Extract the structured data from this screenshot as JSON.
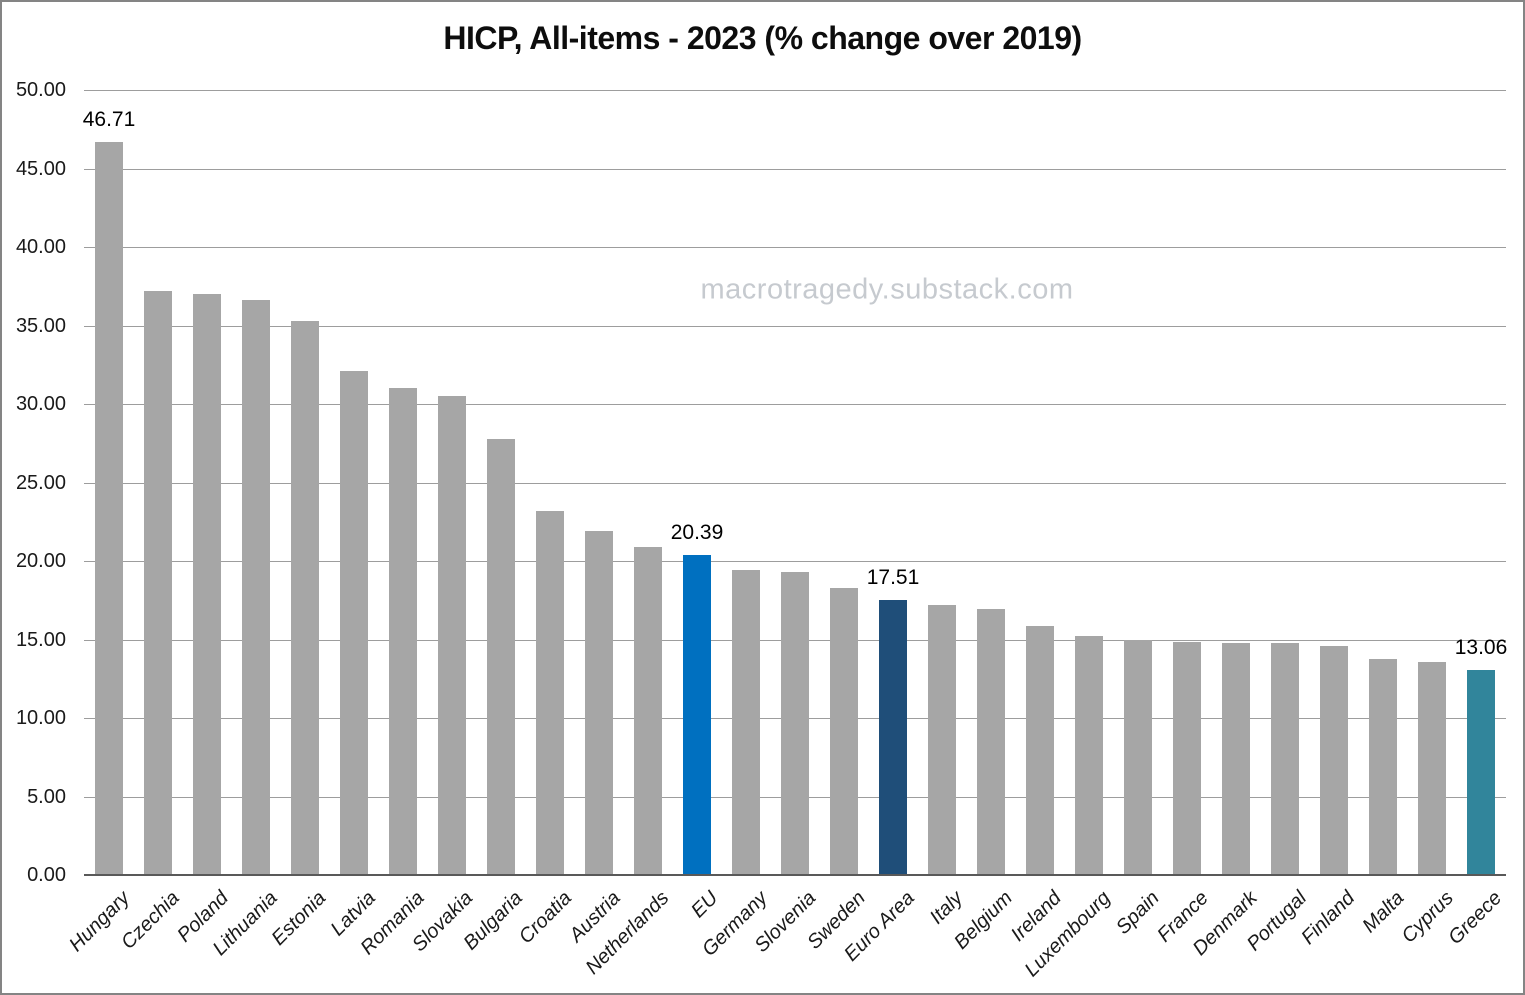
{
  "watermark": "macrotragedy.substack.com",
  "chart_data": {
    "type": "bar",
    "title": "HICP, All-items - 2023 (% change over 2019)",
    "xlabel": "",
    "ylabel": "",
    "ylim": [
      0,
      50
    ],
    "grid": true,
    "legend": false,
    "y_ticks": [
      {
        "v": 0,
        "label": "0.00"
      },
      {
        "v": 5,
        "label": "5.00"
      },
      {
        "v": 10,
        "label": "10.00"
      },
      {
        "v": 15,
        "label": "15.00"
      },
      {
        "v": 20,
        "label": "20.00"
      },
      {
        "v": 25,
        "label": "25.00"
      },
      {
        "v": 30,
        "label": "30.00"
      },
      {
        "v": 35,
        "label": "35.00"
      },
      {
        "v": 40,
        "label": "40.00"
      },
      {
        "v": 45,
        "label": "45.00"
      },
      {
        "v": 50,
        "label": "50.00"
      }
    ],
    "categories": [
      "Hungary",
      "Czechia",
      "Poland",
      "Lithuania",
      "Estonia",
      "Latvia",
      "Romania",
      "Slovakia",
      "Bulgaria",
      "Croatia",
      "Austria",
      "Netherlands",
      "EU",
      "Germany",
      "Slovenia",
      "Sweden",
      "Euro Area",
      "Italy",
      "Belgium",
      "Ireland",
      "Luxembourg",
      "Spain",
      "France",
      "Denmark",
      "Portugal",
      "Finland",
      "Malta",
      "Cyprus",
      "Greece"
    ],
    "values": [
      46.71,
      37.2,
      37.0,
      36.6,
      35.3,
      32.1,
      31.0,
      30.5,
      27.8,
      23.2,
      21.9,
      20.9,
      20.39,
      19.4,
      19.3,
      18.3,
      17.51,
      17.2,
      16.95,
      15.85,
      15.25,
      14.97,
      14.85,
      14.78,
      14.76,
      14.6,
      13.75,
      13.58,
      13.06
    ],
    "data_labels": {
      "0": "46.71",
      "12": "20.39",
      "16": "17.51",
      "28": "13.06"
    },
    "colors": {
      "default_bar": "#a6a6a6",
      "highlight_bars": {
        "EU": "#0070c0",
        "Euro Area": "#1f4e79",
        "Greece": "#31859b"
      },
      "gridline": "#9d9d9d",
      "axis_line": "#595959",
      "title_text": "#0d0d0d",
      "tick_text": "#1a1a1a",
      "watermark_text": "#c6cacf"
    }
  }
}
